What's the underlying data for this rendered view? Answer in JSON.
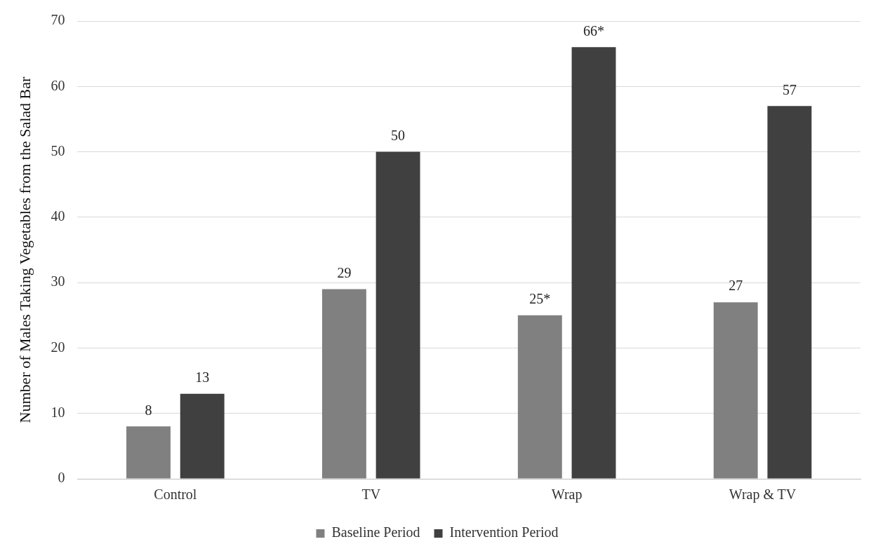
{
  "chart_data": {
    "type": "bar",
    "ylabel": "Number of Males Taking Vegetables from the Salad Bar",
    "categories": [
      "Control",
      "TV",
      "Wrap",
      "Wrap & TV"
    ],
    "series": [
      {
        "name": "Baseline Period",
        "color": "#808080",
        "values": [
          8,
          29,
          25,
          27
        ],
        "value_labels": [
          "8",
          "29",
          "25*",
          "27"
        ]
      },
      {
        "name": "Intervention Period",
        "color": "#404040",
        "values": [
          13,
          50,
          66,
          57
        ],
        "value_labels": [
          "13",
          "50",
          "66*",
          "57"
        ]
      }
    ],
    "ylim": [
      0,
      70
    ],
    "yticks": [
      0,
      10,
      20,
      30,
      40,
      50,
      60,
      70
    ],
    "grid": "y",
    "legend": "bottom"
  }
}
